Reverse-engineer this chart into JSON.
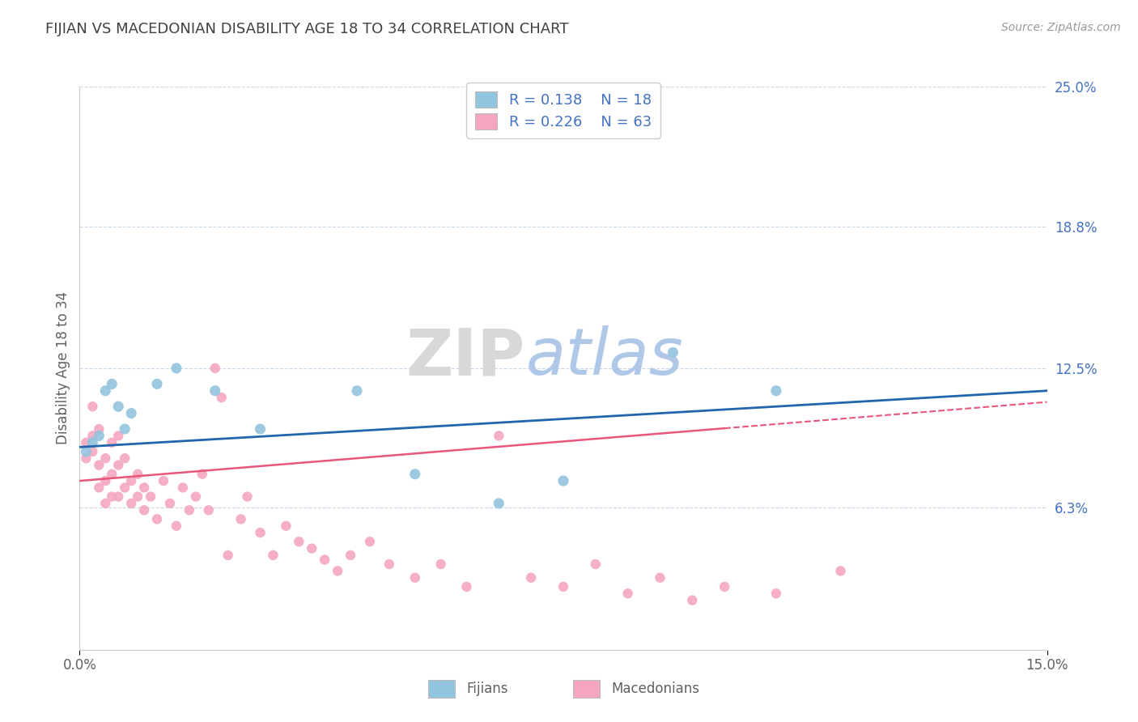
{
  "title": "FIJIAN VS MACEDONIAN DISABILITY AGE 18 TO 34 CORRELATION CHART",
  "source_text": "Source: ZipAtlas.com",
  "ylabel": "Disability Age 18 to 34",
  "xlim": [
    0.0,
    0.15
  ],
  "ylim": [
    0.0,
    0.25
  ],
  "ytick_right_labels": [
    "25.0%",
    "18.8%",
    "12.5%",
    "6.3%"
  ],
  "ytick_right_vals": [
    0.25,
    0.188,
    0.125,
    0.063
  ],
  "legend_fijian_R": "0.138",
  "legend_fijian_N": "18",
  "legend_macedonian_R": "0.226",
  "legend_macedonian_N": "63",
  "legend_label_fijian": "Fijians",
  "legend_label_macedonian": "Macedonians",
  "fijian_color": "#92c5de",
  "macedonian_color": "#f4a6c0",
  "trend_fijian_color": "#2166ac",
  "trend_macedonian_color": "#e8567a",
  "watermark_text1": "ZIP",
  "watermark_text2": "atlas",
  "fijian_x": [
    0.001,
    0.002,
    0.003,
    0.004,
    0.005,
    0.006,
    0.007,
    0.008,
    0.012,
    0.015,
    0.021,
    0.028,
    0.043,
    0.052,
    0.065,
    0.075,
    0.092,
    0.108
  ],
  "fijian_y": [
    0.088,
    0.092,
    0.095,
    0.115,
    0.118,
    0.108,
    0.098,
    0.105,
    0.118,
    0.125,
    0.115,
    0.098,
    0.115,
    0.078,
    0.065,
    0.075,
    0.132,
    0.115
  ],
  "macedonian_x": [
    0.001,
    0.001,
    0.002,
    0.002,
    0.002,
    0.003,
    0.003,
    0.003,
    0.004,
    0.004,
    0.004,
    0.005,
    0.005,
    0.005,
    0.006,
    0.006,
    0.006,
    0.007,
    0.007,
    0.008,
    0.008,
    0.009,
    0.009,
    0.01,
    0.01,
    0.011,
    0.012,
    0.013,
    0.014,
    0.015,
    0.016,
    0.017,
    0.018,
    0.019,
    0.02,
    0.021,
    0.022,
    0.023,
    0.025,
    0.026,
    0.028,
    0.03,
    0.032,
    0.034,
    0.036,
    0.038,
    0.04,
    0.042,
    0.045,
    0.048,
    0.052,
    0.056,
    0.06,
    0.065,
    0.07,
    0.075,
    0.08,
    0.085,
    0.09,
    0.095,
    0.1,
    0.108,
    0.118
  ],
  "macedonian_y": [
    0.092,
    0.085,
    0.108,
    0.095,
    0.088,
    0.082,
    0.098,
    0.072,
    0.085,
    0.075,
    0.065,
    0.092,
    0.078,
    0.068,
    0.095,
    0.082,
    0.068,
    0.072,
    0.085,
    0.075,
    0.065,
    0.078,
    0.068,
    0.072,
    0.062,
    0.068,
    0.058,
    0.075,
    0.065,
    0.055,
    0.072,
    0.062,
    0.068,
    0.078,
    0.062,
    0.125,
    0.112,
    0.042,
    0.058,
    0.068,
    0.052,
    0.042,
    0.055,
    0.048,
    0.045,
    0.04,
    0.035,
    0.042,
    0.048,
    0.038,
    0.032,
    0.038,
    0.028,
    0.095,
    0.032,
    0.028,
    0.038,
    0.025,
    0.032,
    0.022,
    0.028,
    0.025,
    0.035
  ],
  "background_color": "#ffffff",
  "grid_color": "#c8d8e8",
  "title_color": "#404040",
  "axis_label_color": "#606060",
  "right_tick_color": "#4472c4",
  "legend_text_color": "#4472c4"
}
